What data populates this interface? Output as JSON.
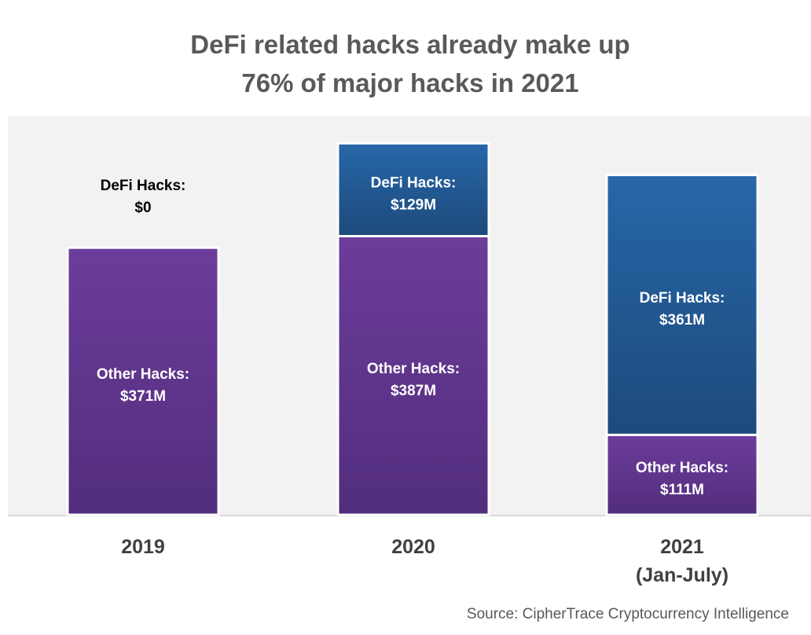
{
  "chart_data": {
    "type": "stacked-bar",
    "title": [
      "DeFi related hacks already make up",
      "76% of major hacks in 2021"
    ],
    "categories": [
      [
        "2019"
      ],
      [
        "2020"
      ],
      [
        "2021",
        "(Jan-July)"
      ]
    ],
    "series": [
      {
        "name": "Other Hacks",
        "values": [
          371,
          387,
          111
        ],
        "labels": [
          "$371M",
          "$387M",
          "$111M"
        ],
        "color": "#6a3d9a"
      },
      {
        "name": "DeFi Hacks",
        "values": [
          0,
          129,
          361
        ],
        "labels": [
          "$0",
          "$129M",
          "$361M"
        ],
        "color": "#2665a6"
      }
    ],
    "unit": "$M",
    "source": "Source: CipherTrace Cryptocurrency Intelligence",
    "grid": false,
    "legend": "none",
    "plot_background": "#f2f2f2"
  }
}
